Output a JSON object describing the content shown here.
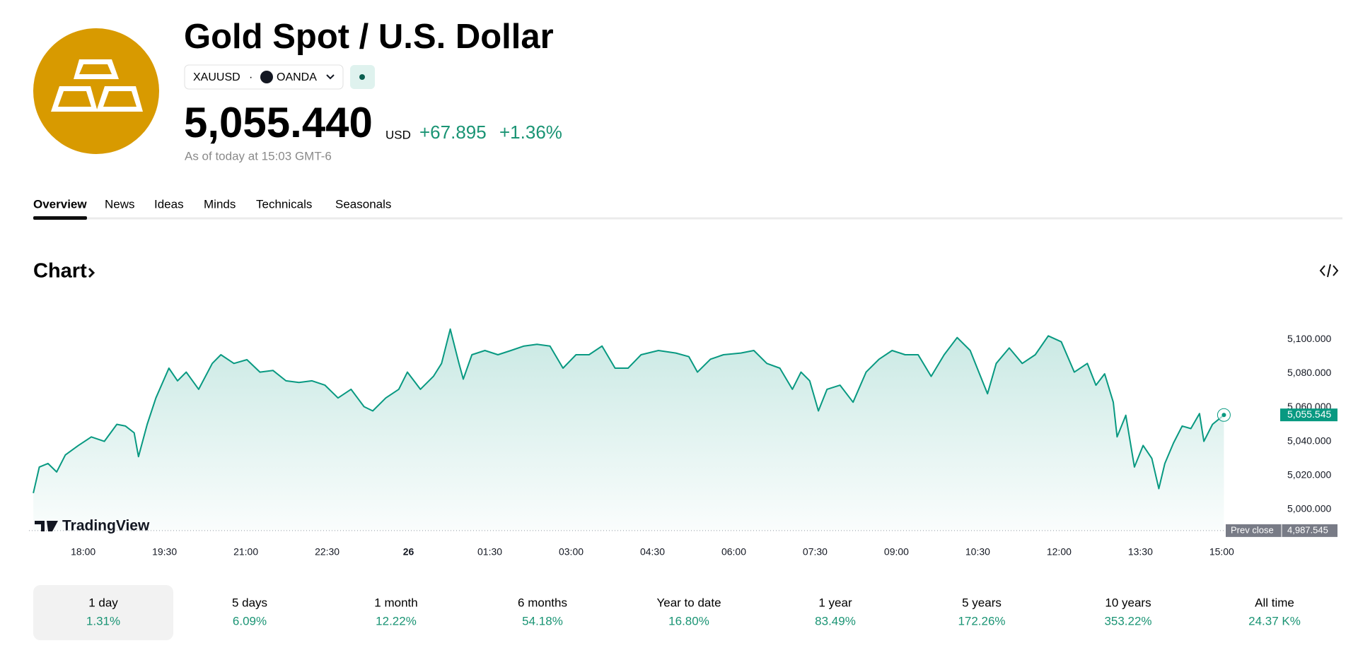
{
  "header": {
    "title": "Gold Spot / U.S. Dollar",
    "symbol": "XAUUSD",
    "separator": "·",
    "exchange": "OANDA",
    "price": "5,055.440",
    "currency": "USD",
    "change": "+67.895",
    "change_percent": "+1.36%",
    "as_of": "As of today at 15:03 GMT-6"
  },
  "tabs": [
    "Overview",
    "News",
    "Ideas",
    "Minds",
    "Technicals",
    "Seasonals"
  ],
  "section_title": "Chart",
  "watermark": "TradingView",
  "chart_data": {
    "type": "line",
    "color": "#089981",
    "grid": false,
    "x": [
      0.08,
      0.19,
      0.35,
      0.51,
      0.67,
      0.91,
      1.15,
      1.39,
      1.62,
      1.78,
      1.94,
      2.02,
      2.18,
      2.34,
      2.58,
      2.74,
      2.9,
      3.13,
      3.38,
      3.54,
      3.78,
      4.02,
      4.26,
      4.5,
      4.74,
      4.98,
      5.22,
      5.46,
      5.7,
      5.94,
      6.18,
      6.34,
      6.58,
      6.82,
      6.98,
      7.22,
      7.46,
      7.61,
      7.77,
      7.93,
      8.01,
      8.17,
      8.41,
      8.65,
      8.89,
      9.13,
      9.37,
      9.61,
      9.85,
      10.09,
      10.33,
      10.57,
      10.81,
      11.05,
      11.29,
      11.61,
      11.93,
      12.17,
      12.33,
      12.57,
      12.81,
      13.13,
      13.37,
      13.61,
      13.85,
      14.08,
      14.24,
      14.4,
      14.56,
      14.72,
      14.96,
      15.2,
      15.44,
      15.68,
      15.92,
      16.16,
      16.4,
      16.64,
      16.88,
      17.12,
      17.36,
      17.52,
      17.68,
      17.84,
      18.08,
      18.32,
      18.56,
      18.8,
      19.04,
      19.28,
      19.52,
      19.68,
      19.84,
      20.0,
      20.07,
      20.23,
      20.39,
      20.55,
      20.71,
      20.84,
      20.95,
      21.11,
      21.27,
      21.43,
      21.59,
      21.67,
      21.83,
      22.04
    ],
    "values": [
      5009.6,
      5024.9,
      5027,
      5022,
      5032,
      5037.6,
      5042.6,
      5040,
      5050,
      5049,
      5045,
      5031,
      5050,
      5065.5,
      5083,
      5075.6,
      5080.7,
      5070.6,
      5085.8,
      5090.9,
      5085.8,
      5088,
      5080.7,
      5081.7,
      5075.6,
      5074.6,
      5075.6,
      5073,
      5065.5,
      5070.6,
      5060.4,
      5057.9,
      5065.5,
      5070.6,
      5080.7,
      5070.6,
      5078.2,
      5085.8,
      5106,
      5085.8,
      5076.6,
      5090.9,
      5093.4,
      5090.9,
      5093.4,
      5096,
      5097,
      5096,
      5083,
      5090.9,
      5090.9,
      5096,
      5083,
      5083,
      5090.9,
      5093.4,
      5091.9,
      5089.8,
      5080.7,
      5088.3,
      5090.9,
      5091.9,
      5093.4,
      5085.8,
      5083,
      5070.6,
      5080.7,
      5075.6,
      5057.9,
      5070.6,
      5073,
      5063,
      5080.7,
      5088.3,
      5093.4,
      5090.9,
      5090.9,
      5078.2,
      5090.9,
      5101,
      5093.4,
      5080.7,
      5068,
      5085.8,
      5094.9,
      5085.8,
      5090.9,
      5102,
      5098.5,
      5080.7,
      5085.8,
      5073,
      5079.7,
      5063,
      5042.6,
      5055.3,
      5024.9,
      5037.6,
      5030,
      5012.2,
      5027,
      5039,
      5049,
      5047.5,
      5056.3,
      5040,
      5050,
      5055.5
    ],
    "xlim": [
      0,
      23
    ],
    "xticks": [
      {
        "value": 1,
        "label": "18:00"
      },
      {
        "value": 2.5,
        "label": "19:30"
      },
      {
        "value": 4,
        "label": "21:00"
      },
      {
        "value": 5.5,
        "label": "22:30"
      },
      {
        "value": 7,
        "label": "26"
      },
      {
        "value": 8.5,
        "label": "01:30"
      },
      {
        "value": 10,
        "label": "03:00"
      },
      {
        "value": 11.5,
        "label": "04:30"
      },
      {
        "value": 13,
        "label": "06:00"
      },
      {
        "value": 14.5,
        "label": "07:30"
      },
      {
        "value": 16,
        "label": "09:00"
      },
      {
        "value": 17.5,
        "label": "10:30"
      },
      {
        "value": 19,
        "label": "12:00"
      },
      {
        "value": 20.5,
        "label": "13:30"
      },
      {
        "value": 22,
        "label": "15:00"
      }
    ],
    "ylim": [
      4985,
      5115
    ],
    "yticks": [
      {
        "value": 5000,
        "label": "5,000.000"
      },
      {
        "value": 5020,
        "label": "5,020.000"
      },
      {
        "value": 5040,
        "label": "5,040.000"
      },
      {
        "value": 5060,
        "label": "5,060.000"
      },
      {
        "value": 5080,
        "label": "5,080.000"
      },
      {
        "value": 5100,
        "label": "5,100.000"
      }
    ],
    "last_value": {
      "value": 5055.545,
      "label": "5,055.545"
    },
    "reference_line": {
      "name": "Prev close",
      "value": 4987.545,
      "label": "4,987.545"
    }
  },
  "periods": [
    {
      "label": "1 day",
      "change": "1.31%"
    },
    {
      "label": "5 days",
      "change": "6.09%"
    },
    {
      "label": "1 month",
      "change": "12.22%"
    },
    {
      "label": "6 months",
      "change": "54.18%"
    },
    {
      "label": "Year to date",
      "change": "16.80%"
    },
    {
      "label": "1 year",
      "change": "83.49%"
    },
    {
      "label": "5 years",
      "change": "172.26%"
    },
    {
      "label": "10 years",
      "change": "353.22%"
    },
    {
      "label": "All time",
      "change": "24.37 K%"
    }
  ]
}
